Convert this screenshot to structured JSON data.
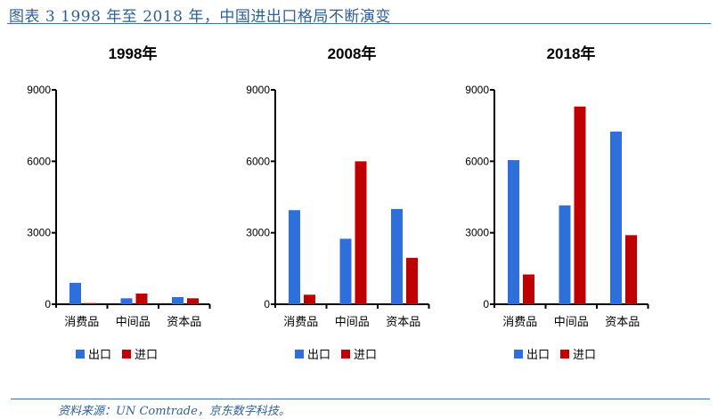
{
  "figure_title": "图表 3 1998 年至 2018 年，中国进出口格局不断演变",
  "source": "资料来源：UN Comtrade，京东数字科技。",
  "colors": {
    "export": "#2f6fdb",
    "import": "#c00000"
  },
  "chart_data": [
    {
      "type": "bar",
      "title": "1998年",
      "categories": [
        "消费品",
        "中间品",
        "资本品"
      ],
      "ylim": [
        0,
        9000
      ],
      "yticks": [
        "0",
        "3000",
        "6000",
        "9000"
      ],
      "legend": "bottom",
      "series": [
        {
          "name": "出口",
          "values": [
            900,
            250,
            300
          ]
        },
        {
          "name": "进口",
          "values": [
            50,
            450,
            250
          ]
        }
      ]
    },
    {
      "type": "bar",
      "title": "2008年",
      "categories": [
        "消费品",
        "中间品",
        "资本品"
      ],
      "ylim": [
        0,
        9000
      ],
      "yticks": [
        "0",
        "3000",
        "6000",
        "9000"
      ],
      "legend": "bottom",
      "series": [
        {
          "name": "出口",
          "values": [
            3950,
            2750,
            4000
          ]
        },
        {
          "name": "进口",
          "values": [
            400,
            6000,
            1950
          ]
        }
      ]
    },
    {
      "type": "bar",
      "title": "2018年",
      "categories": [
        "消费品",
        "中间品",
        "资本品"
      ],
      "ylim": [
        0,
        9000
      ],
      "yticks": [
        "0",
        "3000",
        "6000",
        "9000"
      ],
      "legend": "bottom",
      "series": [
        {
          "name": "出口",
          "values": [
            6050,
            4150,
            7250
          ]
        },
        {
          "name": "进口",
          "values": [
            1250,
            8300,
            2900
          ]
        }
      ]
    }
  ]
}
